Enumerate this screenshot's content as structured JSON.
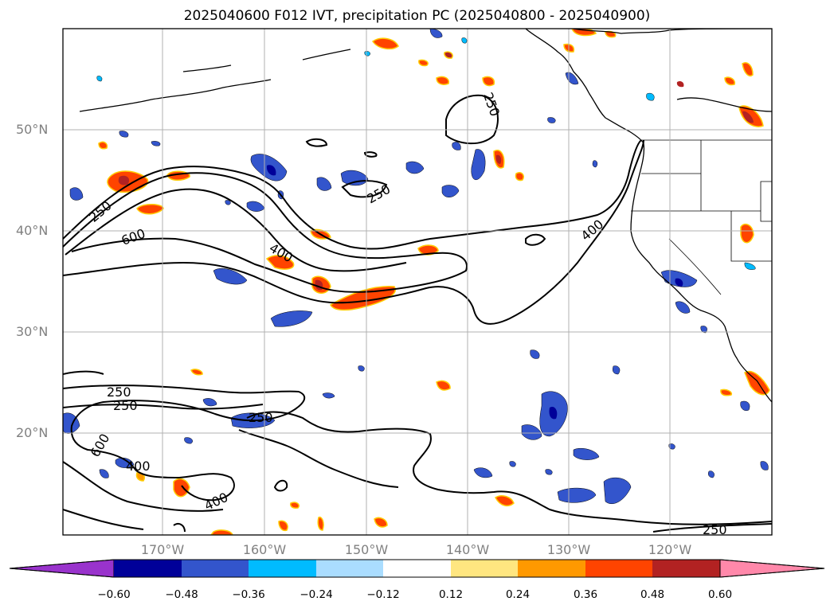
{
  "title": "2025040600 F012 IVT, precipitation PC (2025040800 - 2025040900)",
  "latitude_labels": [
    "50°N",
    "40°N",
    "30°N",
    "20°N"
  ],
  "longitude_labels": [
    "170°W",
    "160°W",
    "150°W",
    "140°W",
    "130°W",
    "120°W"
  ],
  "contour_labels": [
    "250",
    "250",
    "250",
    "250",
    "250",
    "250",
    "250",
    "400",
    "400",
    "400",
    "400",
    "600",
    "600"
  ],
  "colorbar": {
    "tick_labels": [
      "−0.60",
      "−0.48",
      "−0.36",
      "−0.24",
      "−0.12",
      "0.12",
      "0.24",
      "0.36",
      "0.48",
      "0.60"
    ],
    "colors": [
      "#9933cc",
      "#000099",
      "#3355cc",
      "#00bbff",
      "#aaddff",
      "#ffffff",
      "#ffe680",
      "#ff9900",
      "#ff4400",
      "#b22222",
      "#ff88aa"
    ],
    "extend": "both"
  }
}
